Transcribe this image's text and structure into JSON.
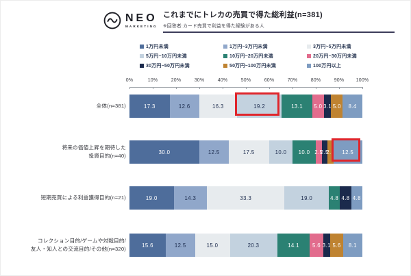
{
  "header": {
    "logo_brand": "NEO",
    "logo_sub": "MARKETING"
  },
  "chart_data": {
    "type": "bar",
    "orientation": "horizontal-stacked",
    "title": "これまでにトレカの売買で得た総利益(n=381)",
    "subtitle": "※回答者:カード売買で利益を得た経験がある人",
    "unit": "%",
    "x_axis": {
      "min": 0,
      "max": 100,
      "tick_step": 10,
      "tick_suffix": "%",
      "grid": false
    },
    "legend_position": "top",
    "segments": [
      {
        "label": "1万円未満",
        "color": "#4e6d9b",
        "text_color": "#ffffff"
      },
      {
        "label": "1万円~3万円未満",
        "color": "#90a7ca",
        "text_color": "#1b2a4c"
      },
      {
        "label": "3万円~5万円未満",
        "color": "#e7ebee",
        "text_color": "#1b2a4c"
      },
      {
        "label": "5万円~10万円未満",
        "color": "#c3d2df",
        "text_color": "#1b2a4c"
      },
      {
        "label": "10万円~20万円未満",
        "color": "#2b8173",
        "text_color": "#ffffff"
      },
      {
        "label": "20万円~30万円未満",
        "color": "#e26c8d",
        "text_color": "#ffffff"
      },
      {
        "label": "30万円~50万円未満",
        "color": "#1b2a4c",
        "text_color": "#ffffff"
      },
      {
        "label": "50万円~100万円未満",
        "color": "#bf8331",
        "text_color": "#ffffff"
      },
      {
        "label": "100万円以上",
        "color": "#7e9cc1",
        "text_color": "#ffffff"
      }
    ],
    "rows": [
      {
        "label_lines": [
          "全体(n=381)"
        ],
        "values": [
          17.3,
          12.6,
          16.3,
          19.2,
          13.1,
          5.0,
          3.1,
          5.0,
          8.4
        ]
      },
      {
        "label_lines": [
          "将来の価値上昇を期待した",
          "投資目的(n=40)"
        ],
        "values": [
          30.0,
          12.5,
          17.5,
          10.0,
          10.0,
          2.5,
          2.5,
          2.5,
          12.5
        ]
      },
      {
        "label_lines": [
          "短期売買による利益獲得目的(n=21)"
        ],
        "values": [
          19.0,
          14.3,
          33.3,
          19.0,
          4.8,
          0,
          4.8,
          0,
          4.8
        ]
      },
      {
        "label_lines": [
          "コレクション目的/ゲームや対戦目的/",
          "友人・知人との交流目的/その他(n=320)"
        ],
        "values": [
          15.6,
          12.5,
          15.0,
          20.3,
          14.1,
          5.6,
          3.1,
          5.6,
          8.1
        ]
      }
    ],
    "highlights": [
      {
        "row": 0,
        "segment": 3
      },
      {
        "row": 1,
        "segment": 8
      }
    ],
    "highlight_color": "#e0252b"
  }
}
